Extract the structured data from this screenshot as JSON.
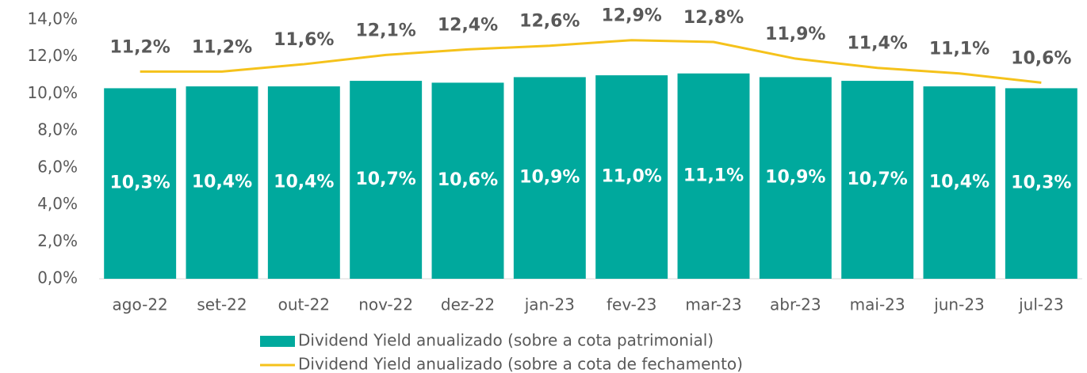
{
  "chart_data": {
    "type": "bar",
    "categories": [
      "ago-22",
      "set-22",
      "out-22",
      "nov-22",
      "dez-22",
      "jan-23",
      "fev-23",
      "mar-23",
      "abr-23",
      "mai-23",
      "jun-23",
      "jul-23"
    ],
    "series": [
      {
        "name": "Dividend Yield anualizado (sobre a cota patrimonial)",
        "type": "bar",
        "color": "#00a99d",
        "values": [
          10.3,
          10.4,
          10.4,
          10.7,
          10.6,
          10.9,
          11.0,
          11.1,
          10.9,
          10.7,
          10.4,
          10.3
        ],
        "value_labels": [
          "10,3%",
          "10,4%",
          "10,4%",
          "10,7%",
          "10,6%",
          "10,9%",
          "11,0%",
          "11,1%",
          "10,9%",
          "10,7%",
          "10,4%",
          "10,3%"
        ]
      },
      {
        "name": "Dividend Yield anualizado (sobre a cota de fechamento)",
        "type": "line",
        "color": "#f5c21b",
        "values": [
          11.2,
          11.2,
          11.6,
          12.1,
          12.4,
          12.6,
          12.9,
          12.8,
          11.9,
          11.4,
          11.1,
          10.6
        ],
        "value_labels": [
          "11,2%",
          "11,2%",
          "11,6%",
          "12,1%",
          "12,4%",
          "12,6%",
          "12,9%",
          "12,8%",
          "11,9%",
          "11,4%",
          "11,1%",
          "10,6%"
        ]
      }
    ],
    "ylim": [
      0,
      14
    ],
    "yticks": [
      {
        "value": 0,
        "label": "0,0%"
      },
      {
        "value": 2,
        "label": "2,0%"
      },
      {
        "value": 4,
        "label": "4,0%"
      },
      {
        "value": 6,
        "label": "6,0%"
      },
      {
        "value": 8,
        "label": "8,0%"
      },
      {
        "value": 10,
        "label": "10,0%"
      },
      {
        "value": 12,
        "label": "12,0%"
      },
      {
        "value": 14,
        "label": "14,0%"
      }
    ],
    "grid": false,
    "legend": "bottom"
  }
}
